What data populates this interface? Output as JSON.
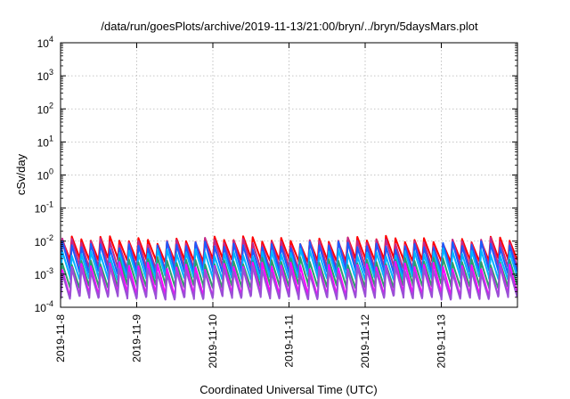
{
  "chart_data": {
    "type": "line",
    "title": "/data/run/goesPlots/archive/2019-11-13/21:00/bryn/../bryn/5daysMars.plot",
    "xlabel": "Coordinated Universal Time (UTC)",
    "ylabel": "cSv/day",
    "yscale": "log",
    "ylim": [
      0.0001,
      10000
    ],
    "y_ticks": [
      {
        "value": 0.0001,
        "base": "10",
        "exp": "-4"
      },
      {
        "value": 0.001,
        "base": "10",
        "exp": "-3"
      },
      {
        "value": 0.01,
        "base": "10",
        "exp": "-2"
      },
      {
        "value": 0.1,
        "base": "10",
        "exp": "-1"
      },
      {
        "value": 1,
        "base": "10",
        "exp": "0"
      },
      {
        "value": 10,
        "base": "10",
        "exp": "1"
      },
      {
        "value": 100,
        "base": "10",
        "exp": "2"
      },
      {
        "value": 1000,
        "base": "10",
        "exp": "3"
      },
      {
        "value": 10000,
        "base": "10",
        "exp": "4"
      }
    ],
    "xlim": [
      "2019-11-08",
      "2019-11-14"
    ],
    "x_ticks": [
      "2019-11-8",
      "2019-11-9",
      "2019-11-10",
      "2019-11-11",
      "2019-11-12",
      "2019-11-13"
    ],
    "grid": true,
    "cycles_per_day": 8,
    "series": [
      {
        "color": "#ff0000",
        "peak": 0.011,
        "trough": 0.0028
      },
      {
        "color": "#c0288c",
        "peak": 0.0095,
        "trough": 0.0017
      },
      {
        "color": "#1a5cff",
        "peak": 0.0075,
        "trough": 0.0012
      },
      {
        "color": "#00b4ff",
        "peak": 0.0045,
        "trough": 0.0008
      },
      {
        "color": "#2e9e6a",
        "peak": 0.0025,
        "trough": 0.00045
      },
      {
        "color": "#ff00ff",
        "peak": 0.0018,
        "trough": 0.00025
      },
      {
        "color": "#9a4fd6",
        "peak": 0.0013,
        "trough": 0.0002
      }
    ]
  }
}
